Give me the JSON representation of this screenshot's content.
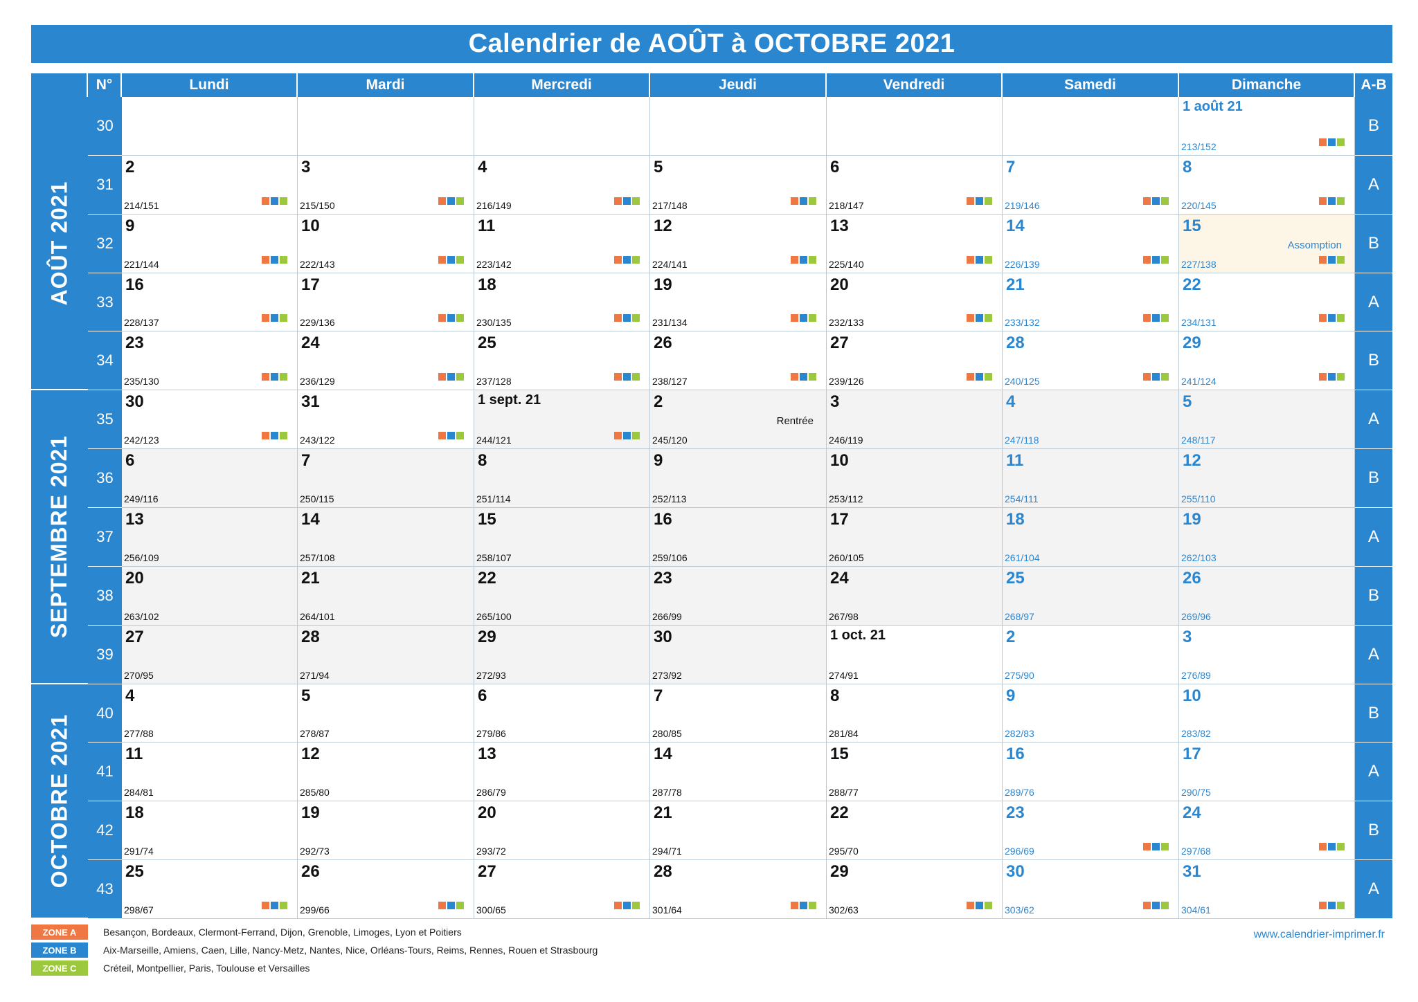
{
  "title": "Calendrier de AOÛT à OCTOBRE 2021",
  "colors": {
    "primary": "#2b86d0",
    "zone_a": "#ee7743",
    "zone_b": "#2b86d0",
    "zone_c": "#9bc83c"
  },
  "headers": {
    "week_no": "N°",
    "days": [
      "Lundi",
      "Mardi",
      "Mercredi",
      "Jeudi",
      "Vendredi",
      "Samedi",
      "Dimanche"
    ],
    "ab": "A-B"
  },
  "months": [
    {
      "label": "AOÛT 2021",
      "start_row": 0,
      "end_row": 4
    },
    {
      "label": "SEPTEMBRE 2021",
      "start_row": 5,
      "end_row": 9
    },
    {
      "label": "OCTOBRE 2021",
      "start_row": 10,
      "end_row": 13
    }
  ],
  "weeks": [
    {
      "no": "30",
      "ab": "B",
      "days": [
        null,
        null,
        null,
        null,
        null,
        null,
        {
          "num": "1 août 21",
          "count": "213/152",
          "zones": true,
          "small": true
        }
      ]
    },
    {
      "no": "31",
      "ab": "A",
      "days": [
        {
          "num": "2",
          "count": "214/151",
          "zones": true
        },
        {
          "num": "3",
          "count": "215/150",
          "zones": true
        },
        {
          "num": "4",
          "count": "216/149",
          "zones": true
        },
        {
          "num": "5",
          "count": "217/148",
          "zones": true
        },
        {
          "num": "6",
          "count": "218/147",
          "zones": true
        },
        {
          "num": "7",
          "count": "219/146",
          "zones": true
        },
        {
          "num": "8",
          "count": "220/145",
          "zones": true
        }
      ]
    },
    {
      "no": "32",
      "ab": "B",
      "days": [
        {
          "num": "9",
          "count": "221/144",
          "zones": true
        },
        {
          "num": "10",
          "count": "222/143",
          "zones": true
        },
        {
          "num": "11",
          "count": "223/142",
          "zones": true
        },
        {
          "num": "12",
          "count": "224/141",
          "zones": true
        },
        {
          "num": "13",
          "count": "225/140",
          "zones": true
        },
        {
          "num": "14",
          "count": "226/139",
          "zones": true
        },
        {
          "num": "15",
          "count": "227/138",
          "zones": true,
          "event": "Assomption",
          "holiday": true
        }
      ]
    },
    {
      "no": "33",
      "ab": "A",
      "days": [
        {
          "num": "16",
          "count": "228/137",
          "zones": true
        },
        {
          "num": "17",
          "count": "229/136",
          "zones": true
        },
        {
          "num": "18",
          "count": "230/135",
          "zones": true
        },
        {
          "num": "19",
          "count": "231/134",
          "zones": true
        },
        {
          "num": "20",
          "count": "232/133",
          "zones": true
        },
        {
          "num": "21",
          "count": "233/132",
          "zones": true
        },
        {
          "num": "22",
          "count": "234/131",
          "zones": true
        }
      ]
    },
    {
      "no": "34",
      "ab": "B",
      "days": [
        {
          "num": "23",
          "count": "235/130",
          "zones": true
        },
        {
          "num": "24",
          "count": "236/129",
          "zones": true
        },
        {
          "num": "25",
          "count": "237/128",
          "zones": true
        },
        {
          "num": "26",
          "count": "238/127",
          "zones": true
        },
        {
          "num": "27",
          "count": "239/126",
          "zones": true
        },
        {
          "num": "28",
          "count": "240/125",
          "zones": true
        },
        {
          "num": "29",
          "count": "241/124",
          "zones": true
        }
      ]
    },
    {
      "no": "35",
      "ab": "A",
      "days": [
        {
          "num": "30",
          "count": "242/123",
          "zones": true
        },
        {
          "num": "31",
          "count": "243/122",
          "zones": true
        },
        {
          "num": "1 sept. 21",
          "count": "244/121",
          "zones": true,
          "small": true,
          "shade": true
        },
        {
          "num": "2",
          "count": "245/120",
          "event": "Rentrée",
          "shade": true
        },
        {
          "num": "3",
          "count": "246/119",
          "shade": true
        },
        {
          "num": "4",
          "count": "247/118",
          "shade": true
        },
        {
          "num": "5",
          "count": "248/117",
          "shade": true
        }
      ]
    },
    {
      "no": "36",
      "ab": "B",
      "days": [
        {
          "num": "6",
          "count": "249/116",
          "shade": true
        },
        {
          "num": "7",
          "count": "250/115",
          "shade": true
        },
        {
          "num": "8",
          "count": "251/114",
          "shade": true
        },
        {
          "num": "9",
          "count": "252/113",
          "shade": true
        },
        {
          "num": "10",
          "count": "253/112",
          "shade": true
        },
        {
          "num": "11",
          "count": "254/111",
          "shade": true
        },
        {
          "num": "12",
          "count": "255/110",
          "shade": true
        }
      ]
    },
    {
      "no": "37",
      "ab": "A",
      "days": [
        {
          "num": "13",
          "count": "256/109",
          "shade": true
        },
        {
          "num": "14",
          "count": "257/108",
          "shade": true
        },
        {
          "num": "15",
          "count": "258/107",
          "shade": true
        },
        {
          "num": "16",
          "count": "259/106",
          "shade": true
        },
        {
          "num": "17",
          "count": "260/105",
          "shade": true
        },
        {
          "num": "18",
          "count": "261/104",
          "shade": true
        },
        {
          "num": "19",
          "count": "262/103",
          "shade": true
        }
      ]
    },
    {
      "no": "38",
      "ab": "B",
      "days": [
        {
          "num": "20",
          "count": "263/102",
          "shade": true
        },
        {
          "num": "21",
          "count": "264/101",
          "shade": true
        },
        {
          "num": "22",
          "count": "265/100",
          "shade": true
        },
        {
          "num": "23",
          "count": "266/99",
          "shade": true
        },
        {
          "num": "24",
          "count": "267/98",
          "shade": true
        },
        {
          "num": "25",
          "count": "268/97",
          "shade": true
        },
        {
          "num": "26",
          "count": "269/96",
          "shade": true
        }
      ]
    },
    {
      "no": "39",
      "ab": "A",
      "days": [
        {
          "num": "27",
          "count": "270/95",
          "shade": true
        },
        {
          "num": "28",
          "count": "271/94",
          "shade": true
        },
        {
          "num": "29",
          "count": "272/93",
          "shade": true
        },
        {
          "num": "30",
          "count": "273/92",
          "shade": true
        },
        {
          "num": "1 oct. 21",
          "count": "274/91",
          "small": true
        },
        {
          "num": "2",
          "count": "275/90"
        },
        {
          "num": "3",
          "count": "276/89"
        }
      ]
    },
    {
      "no": "40",
      "ab": "B",
      "days": [
        {
          "num": "4",
          "count": "277/88"
        },
        {
          "num": "5",
          "count": "278/87"
        },
        {
          "num": "6",
          "count": "279/86"
        },
        {
          "num": "7",
          "count": "280/85"
        },
        {
          "num": "8",
          "count": "281/84"
        },
        {
          "num": "9",
          "count": "282/83"
        },
        {
          "num": "10",
          "count": "283/82"
        }
      ]
    },
    {
      "no": "41",
      "ab": "A",
      "days": [
        {
          "num": "11",
          "count": "284/81"
        },
        {
          "num": "12",
          "count": "285/80"
        },
        {
          "num": "13",
          "count": "286/79"
        },
        {
          "num": "14",
          "count": "287/78"
        },
        {
          "num": "15",
          "count": "288/77"
        },
        {
          "num": "16",
          "count": "289/76"
        },
        {
          "num": "17",
          "count": "290/75"
        }
      ]
    },
    {
      "no": "42",
      "ab": "B",
      "days": [
        {
          "num": "18",
          "count": "291/74"
        },
        {
          "num": "19",
          "count": "292/73"
        },
        {
          "num": "20",
          "count": "293/72"
        },
        {
          "num": "21",
          "count": "294/71"
        },
        {
          "num": "22",
          "count": "295/70"
        },
        {
          "num": "23",
          "count": "296/69",
          "zones": true
        },
        {
          "num": "24",
          "count": "297/68",
          "zones": true
        }
      ]
    },
    {
      "no": "43",
      "ab": "A",
      "days": [
        {
          "num": "25",
          "count": "298/67",
          "zones": true
        },
        {
          "num": "26",
          "count": "299/66",
          "zones": true
        },
        {
          "num": "27",
          "count": "300/65",
          "zones": true
        },
        {
          "num": "28",
          "count": "301/64",
          "zones": true
        },
        {
          "num": "29",
          "count": "302/63",
          "zones": true
        },
        {
          "num": "30",
          "count": "303/62",
          "zones": true
        },
        {
          "num": "31",
          "count": "304/61",
          "zones": true
        }
      ]
    }
  ],
  "legend": [
    {
      "label": "ZONE A",
      "color": "#ee7743",
      "text": "Besançon, Bordeaux, Clermont-Ferrand, Dijon, Grenoble, Limoges, Lyon et Poitiers"
    },
    {
      "label": "ZONE B",
      "color": "#2b86d0",
      "text": "Aix-Marseille, Amiens, Caen, Lille, Nancy-Metz, Nantes, Nice, Orléans-Tours, Reims, Rennes, Rouen et Strasbourg"
    },
    {
      "label": "ZONE C",
      "color": "#9bc83c",
      "text": "Créteil, Montpellier, Paris, Toulouse et Versailles"
    }
  ],
  "website": "www.calendrier-imprimer.fr"
}
